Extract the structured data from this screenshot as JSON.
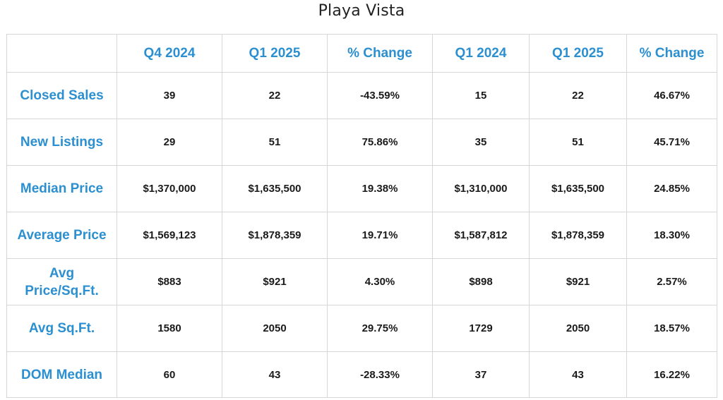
{
  "title": "Playa Vista",
  "columns": [
    "",
    "Q4 2024",
    "Q1 2025",
    "% Change",
    "Q1 2024",
    "Q1 2025",
    "% Change"
  ],
  "rows": [
    {
      "label": "Closed Sales",
      "values": [
        "39",
        "22",
        "-43.59%",
        "15",
        "22",
        "46.67%"
      ]
    },
    {
      "label": "New Listings",
      "values": [
        "29",
        "51",
        "75.86%",
        "35",
        "51",
        "45.71%"
      ]
    },
    {
      "label": "Median Price",
      "values": [
        "$1,370,000",
        "$1,635,500",
        "19.38%",
        "$1,310,000",
        "$1,635,500",
        "24.85%"
      ]
    },
    {
      "label": "Average Price",
      "values": [
        "$1,569,123",
        "$1,878,359",
        "19.71%",
        "$1,587,812",
        "$1,878,359",
        "18.30%"
      ]
    },
    {
      "label": "Avg Price/Sq.Ft.",
      "values": [
        "$883",
        "$921",
        "4.30%",
        "$898",
        "$921",
        "2.57%"
      ]
    },
    {
      "label": "Avg Sq.Ft.",
      "values": [
        "1580",
        "2050",
        "29.75%",
        "1729",
        "2050",
        "18.57%"
      ]
    },
    {
      "label": "DOM Median",
      "values": [
        "60",
        "43",
        "-28.33%",
        "37",
        "43",
        "16.22%"
      ]
    }
  ],
  "colors": {
    "header_text": "#2b8fd0",
    "value_text": "#1a1a1a",
    "border": "#d6d6d6"
  }
}
